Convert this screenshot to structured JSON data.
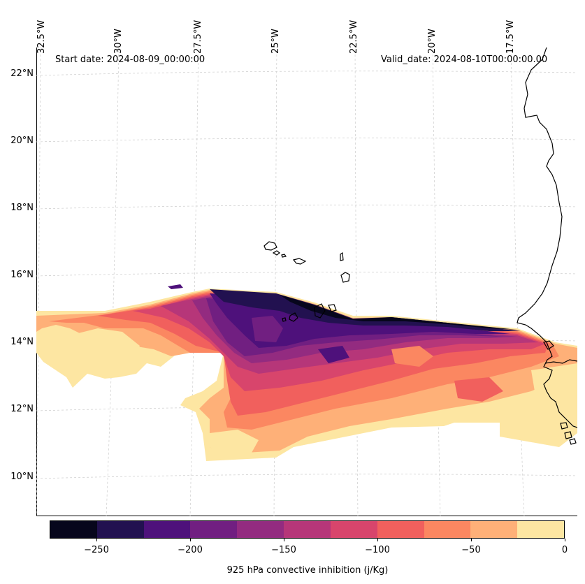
{
  "map": {
    "title_left": "Start date: 2024-08-09_00:00:00",
    "title_right": "Valid_date: 2024-08-10T00:00:00.00",
    "variable_label": "925 hPa convective inhibition (j/Kg)",
    "lon_labels": [
      "32.5°W",
      "30°W",
      "27.5°W",
      "25°W",
      "22.5°W",
      "20°W",
      "17.5°W"
    ],
    "lat_labels": [
      "22°N",
      "20°N",
      "18°N",
      "16°N",
      "14°N",
      "12°N",
      "10°N"
    ],
    "features": [
      "coastline-west-africa",
      "cape-verde-islands",
      "senegal-gambia-coast"
    ]
  },
  "colorbar": {
    "levels": [
      -275,
      -250,
      -225,
      -200,
      -175,
      -150,
      -125,
      -100,
      -75,
      -50,
      -25,
      0
    ],
    "tick_labels": [
      "−250",
      "−200",
      "−150",
      "−100",
      "−50",
      "0"
    ],
    "colors": [
      "#07061c",
      "#221150",
      "#4e117b",
      "#711f81",
      "#932b80",
      "#b63679",
      "#d8456c",
      "#f1605d",
      "#fb8761",
      "#feb078",
      "#fde6a2"
    ]
  }
}
